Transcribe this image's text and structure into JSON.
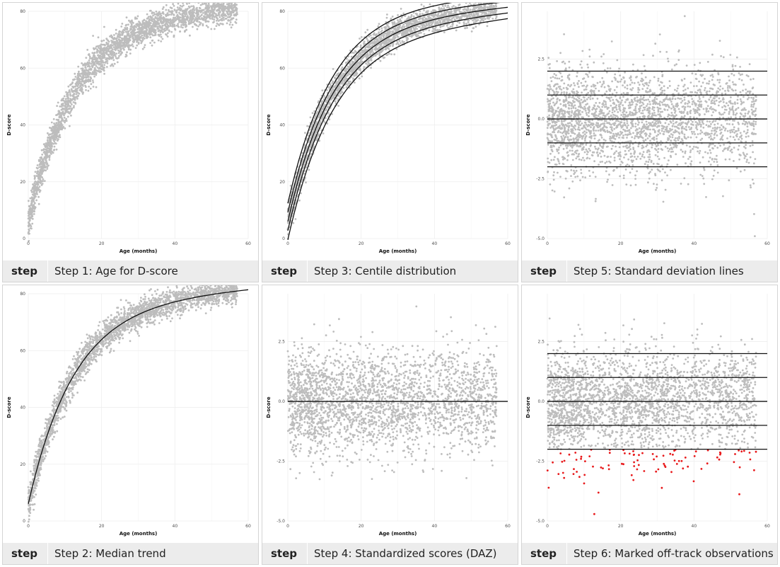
{
  "caption_step_label": "step",
  "colors": {
    "points": "#bdbdbd",
    "lines": "#111111",
    "offtrack": "#e8191b",
    "grid": "#ededed"
  },
  "chart_data": [
    {
      "id": "p1",
      "type": "scatter",
      "caption": "Step 1: Age for D-score",
      "xlabel": "Age (months)",
      "ylabel": "D-score",
      "xlim": [
        0,
        60
      ],
      "ylim": [
        0,
        80
      ],
      "xticks": [
        0,
        20,
        40,
        60
      ],
      "yticks": [
        0,
        20,
        40,
        60,
        80
      ],
      "yticklabels": [
        "0",
        "20",
        "40",
        "60",
        "80"
      ],
      "points": "dscore",
      "hlines": [],
      "curves": [],
      "offtrack": false,
      "series": [
        {
          "values_description": "D-score by age",
          "approx_points": [
            [
              0,
              8
            ],
            [
              2,
              25
            ],
            [
              5,
              40
            ],
            [
              10,
              50
            ],
            [
              20,
              60
            ],
            [
              30,
              66
            ],
            [
              40,
              70
            ],
            [
              50,
              72
            ],
            [
              56,
              73
            ]
          ]
        }
      ]
    },
    {
      "id": "p2",
      "type": "scatter",
      "caption": "Step 2: Median trend",
      "xlabel": "Age (months)",
      "ylabel": "D-score",
      "xlim": [
        0,
        60
      ],
      "ylim": [
        0,
        80
      ],
      "xticks": [
        0,
        20,
        40,
        60
      ],
      "yticks": [
        0,
        20,
        40,
        60,
        80
      ],
      "yticklabels": [
        "0",
        "20",
        "40",
        "60",
        "80"
      ],
      "points": "dscore",
      "hlines": [],
      "curves": [
        0
      ],
      "offtrack": false,
      "series": [
        {
          "name": "median",
          "x": [
            0,
            2,
            5,
            10,
            15,
            20,
            30,
            40,
            50,
            60
          ],
          "y": [
            6,
            24,
            39,
            51,
            57,
            62,
            68,
            72,
            74,
            76
          ]
        }
      ]
    },
    {
      "id": "p3",
      "type": "scatter",
      "caption": "Step 3: Centile distribution",
      "xlabel": "Age (months)",
      "ylabel": "D-score",
      "xlim": [
        0,
        60
      ],
      "ylim": [
        0,
        80
      ],
      "xticks": [
        0,
        20,
        40,
        60
      ],
      "yticks": [
        0,
        20,
        40,
        60,
        80
      ],
      "yticklabels": [
        "0",
        "20",
        "40",
        "60",
        "80"
      ],
      "points": "dscore",
      "hlines": [],
      "curves": [
        -2,
        -1,
        0,
        1,
        2
      ],
      "offtrack": false,
      "series": [
        {
          "name": "centile -2 SD",
          "x": [
            0,
            20,
            40,
            60
          ],
          "y": [
            -1,
            56,
            66,
            71
          ]
        },
        {
          "name": "centile -1 SD",
          "x": [
            0,
            20,
            40,
            60
          ],
          "y": [
            2,
            59,
            69,
            74
          ]
        },
        {
          "name": "centile median",
          "x": [
            0,
            20,
            40,
            60
          ],
          "y": [
            6,
            62,
            72,
            76
          ]
        },
        {
          "name": "centile +1 SD",
          "x": [
            0,
            20,
            40,
            60
          ],
          "y": [
            10,
            65,
            74,
            79
          ]
        },
        {
          "name": "centile +2 SD",
          "x": [
            0,
            20,
            40,
            60
          ],
          "y": [
            13,
            68,
            77,
            81
          ]
        }
      ]
    },
    {
      "id": "p4",
      "type": "scatter",
      "caption": "Step 4: Standardized scores (DAZ)",
      "xlabel": "Age (months)",
      "ylabel": "D-score",
      "xlim": [
        0,
        60
      ],
      "ylim": [
        -5,
        4.5
      ],
      "xticks": [
        0,
        20,
        40,
        60
      ],
      "yticks": [
        -5,
        -2.5,
        0,
        2.5
      ],
      "yticklabels": [
        "-5.0",
        "-2.5",
        "0.0",
        "2.5"
      ],
      "points": "daz",
      "hlines": [
        0
      ],
      "curves": [],
      "offtrack": false,
      "series": [
        {
          "values_description": "DAZ by age, roughly centred on 0 within -5 to 4"
        }
      ]
    },
    {
      "id": "p5",
      "type": "scatter",
      "caption": "Step 5: Standard deviation lines",
      "xlabel": "Age (months)",
      "ylabel": "D-score",
      "xlim": [
        0,
        60
      ],
      "ylim": [
        -5,
        4.5
      ],
      "xticks": [
        0,
        20,
        40,
        60
      ],
      "yticks": [
        -5,
        -2.5,
        0,
        2.5
      ],
      "yticklabels": [
        "-5.0",
        "-2.5",
        "0.0",
        "2.5"
      ],
      "points": "daz",
      "hlines": [
        -2,
        -1,
        0,
        1,
        2
      ],
      "curves": [],
      "offtrack": false,
      "series": [
        {
          "values_description": "DAZ by age with SD reference lines at -2, -1, 0, 1, 2"
        }
      ]
    },
    {
      "id": "p6",
      "type": "scatter",
      "caption": "Step 6: Marked off-track observations",
      "xlabel": "Age (months)",
      "ylabel": "D-score",
      "xlim": [
        0,
        60
      ],
      "ylim": [
        -5,
        4.5
      ],
      "xticks": [
        0,
        20,
        40,
        60
      ],
      "yticks": [
        -5,
        -2.5,
        0,
        2.5
      ],
      "yticklabels": [
        "-5.0",
        "-2.5",
        "0.0",
        "2.5"
      ],
      "points": "daz",
      "hlines": [
        -2,
        -1,
        0,
        1,
        2
      ],
      "curves": [],
      "offtrack": true,
      "series": [
        {
          "values_description": "DAZ by age; observations below -2 SD marked red"
        }
      ]
    }
  ]
}
